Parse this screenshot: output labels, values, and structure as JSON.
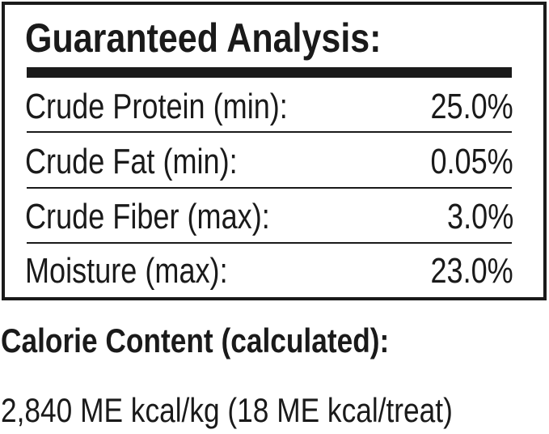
{
  "analysis": {
    "title": "Guaranteed Analysis:",
    "rows": [
      {
        "label": "Crude Protein (min):",
        "value": "25.0%"
      },
      {
        "label": "Crude Fat (min):",
        "value": "0.05%"
      },
      {
        "label": "Crude Fiber (max):",
        "value": "3.0%"
      },
      {
        "label": "Moisture (max):",
        "value": "23.0%"
      }
    ]
  },
  "calorie": {
    "heading": "Calorie Content (calculated):",
    "value": "2,840 ME kcal/kg (18 ME kcal/treat)"
  }
}
